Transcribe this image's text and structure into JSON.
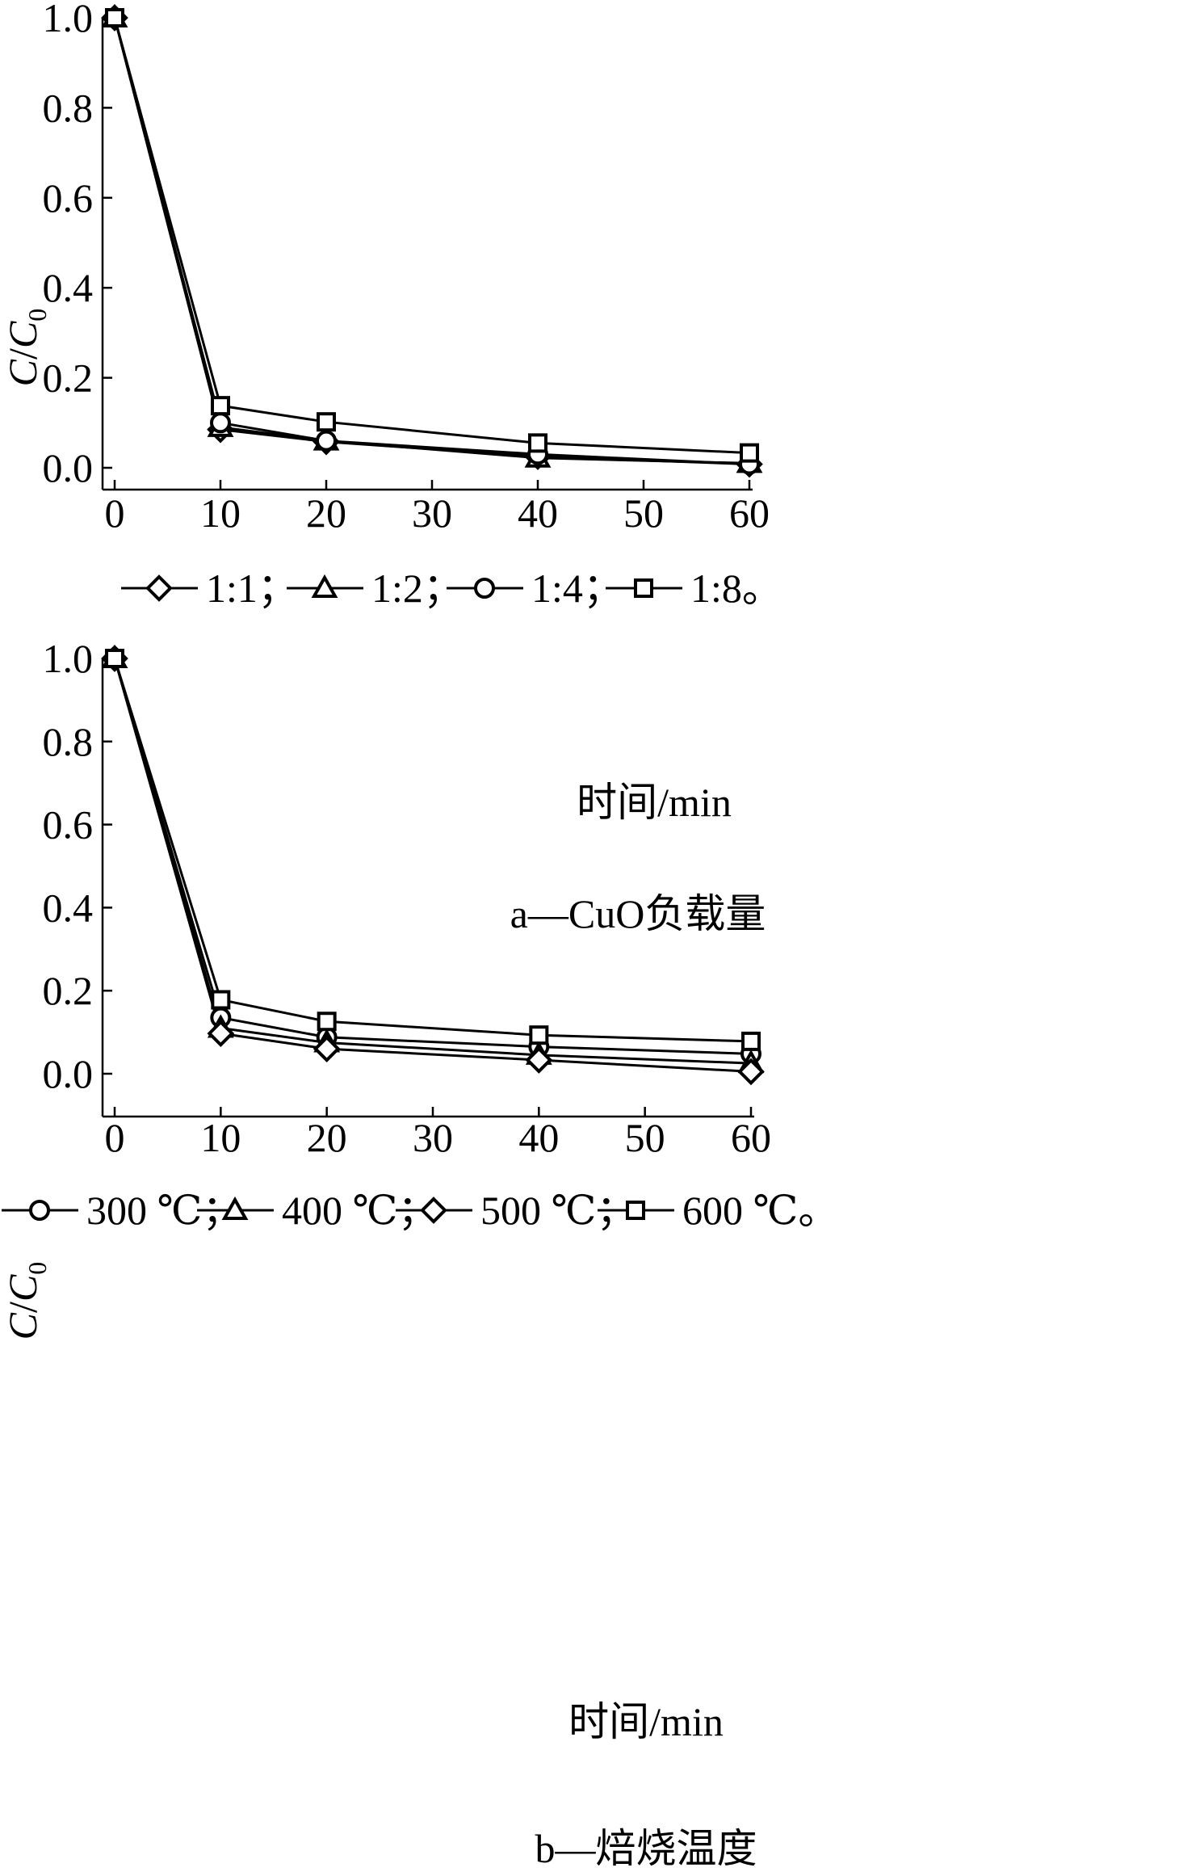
{
  "chart_data": [
    {
      "type": "line",
      "xlabel": "时间/min",
      "ylabel_main": "C",
      "ylabel_sep": "/",
      "ylabel_mid": "C",
      "ylabel_sub": "0",
      "caption": "a—CuO负载量",
      "xlim": [
        -1,
        60
      ],
      "ylim": [
        -0.05,
        1.0
      ],
      "xticks": [
        0,
        10,
        20,
        30,
        40,
        50,
        60
      ],
      "yticks": [
        0.0,
        0.2,
        0.4,
        0.6,
        0.8,
        1.0
      ],
      "x": [
        0,
        10,
        20,
        40,
        60
      ],
      "legend_position": "bottom",
      "series": [
        {
          "name": "1:1；",
          "marker": "diamond",
          "values": [
            1.0,
            0.085,
            0.058,
            0.025,
            0.008
          ]
        },
        {
          "name": "1:2；",
          "marker": "triangle",
          "values": [
            1.0,
            0.09,
            0.06,
            0.022,
            0.01
          ]
        },
        {
          "name": "1:4；",
          "marker": "circle",
          "values": [
            1.0,
            0.1,
            0.06,
            0.03,
            0.008
          ]
        },
        {
          "name": "1:8。",
          "marker": "square",
          "values": [
            1.0,
            0.138,
            0.102,
            0.055,
            0.033
          ]
        }
      ]
    },
    {
      "type": "line",
      "xlabel": "时间/min",
      "ylabel_main": "C",
      "ylabel_sep": "/",
      "ylabel_mid": "C",
      "ylabel_sub": "0",
      "caption": "b—焙烧温度",
      "xlim": [
        -1,
        60
      ],
      "ylim": [
        -0.1,
        1.0
      ],
      "xticks": [
        0,
        10,
        20,
        30,
        40,
        50,
        60
      ],
      "yticks": [
        0.0,
        0.2,
        0.4,
        0.6,
        0.8,
        1.0
      ],
      "x": [
        0,
        10,
        20,
        40,
        60
      ],
      "legend_position": "bottom",
      "series": [
        {
          "name": "300 ℃；",
          "marker": "circle",
          "values": [
            1.0,
            0.135,
            0.088,
            0.065,
            0.048
          ]
        },
        {
          "name": "400 ℃；",
          "marker": "triangle",
          "values": [
            1.0,
            0.11,
            0.075,
            0.045,
            0.025
          ]
        },
        {
          "name": "500 ℃；",
          "marker": "diamond",
          "values": [
            1.0,
            0.097,
            0.06,
            0.033,
            0.005
          ]
        },
        {
          "name": "600 ℃。",
          "marker": "square",
          "values": [
            1.0,
            0.178,
            0.126,
            0.093,
            0.078
          ]
        }
      ]
    }
  ]
}
